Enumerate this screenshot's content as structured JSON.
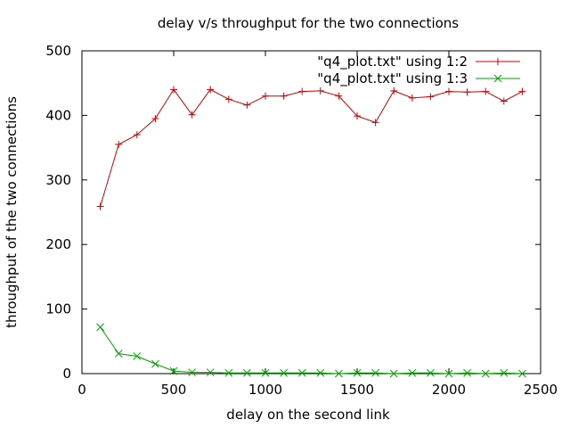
{
  "chart_data": {
    "type": "line",
    "title": "delay v/s throughput for the two connections",
    "xlabel": "delay on the second link",
    "ylabel": "throughput of the two connections",
    "xlim": [
      0,
      2500
    ],
    "ylim": [
      0,
      500
    ],
    "xticks": [
      0,
      500,
      1000,
      1500,
      2000,
      2500
    ],
    "yticks": [
      0,
      100,
      200,
      300,
      400,
      500
    ],
    "grid": false,
    "legend_position": "top-right",
    "x": [
      100,
      200,
      300,
      400,
      500,
      600,
      700,
      800,
      900,
      1000,
      1100,
      1200,
      1300,
      1400,
      1500,
      1600,
      1700,
      1800,
      1900,
      2000,
      2100,
      2200,
      2300,
      2400
    ],
    "series": [
      {
        "name": "\"q4_plot.txt\" using 1:2",
        "color": "#cc0000",
        "marker": "plus",
        "values": [
          259,
          355,
          370,
          395,
          440,
          401,
          440,
          425,
          416,
          430,
          430,
          437,
          438,
          430,
          399,
          389,
          438,
          427,
          429,
          437,
          436,
          437,
          422,
          437
        ]
      },
      {
        "name": "\"q4_plot.txt\" using 1:3",
        "color": "#00a000",
        "marker": "cross",
        "values": [
          72,
          31,
          27,
          15,
          4,
          2,
          2,
          1,
          1,
          1,
          1,
          1,
          1,
          0,
          1,
          1,
          0,
          1,
          1,
          0,
          1,
          0,
          1,
          0
        ]
      }
    ]
  }
}
